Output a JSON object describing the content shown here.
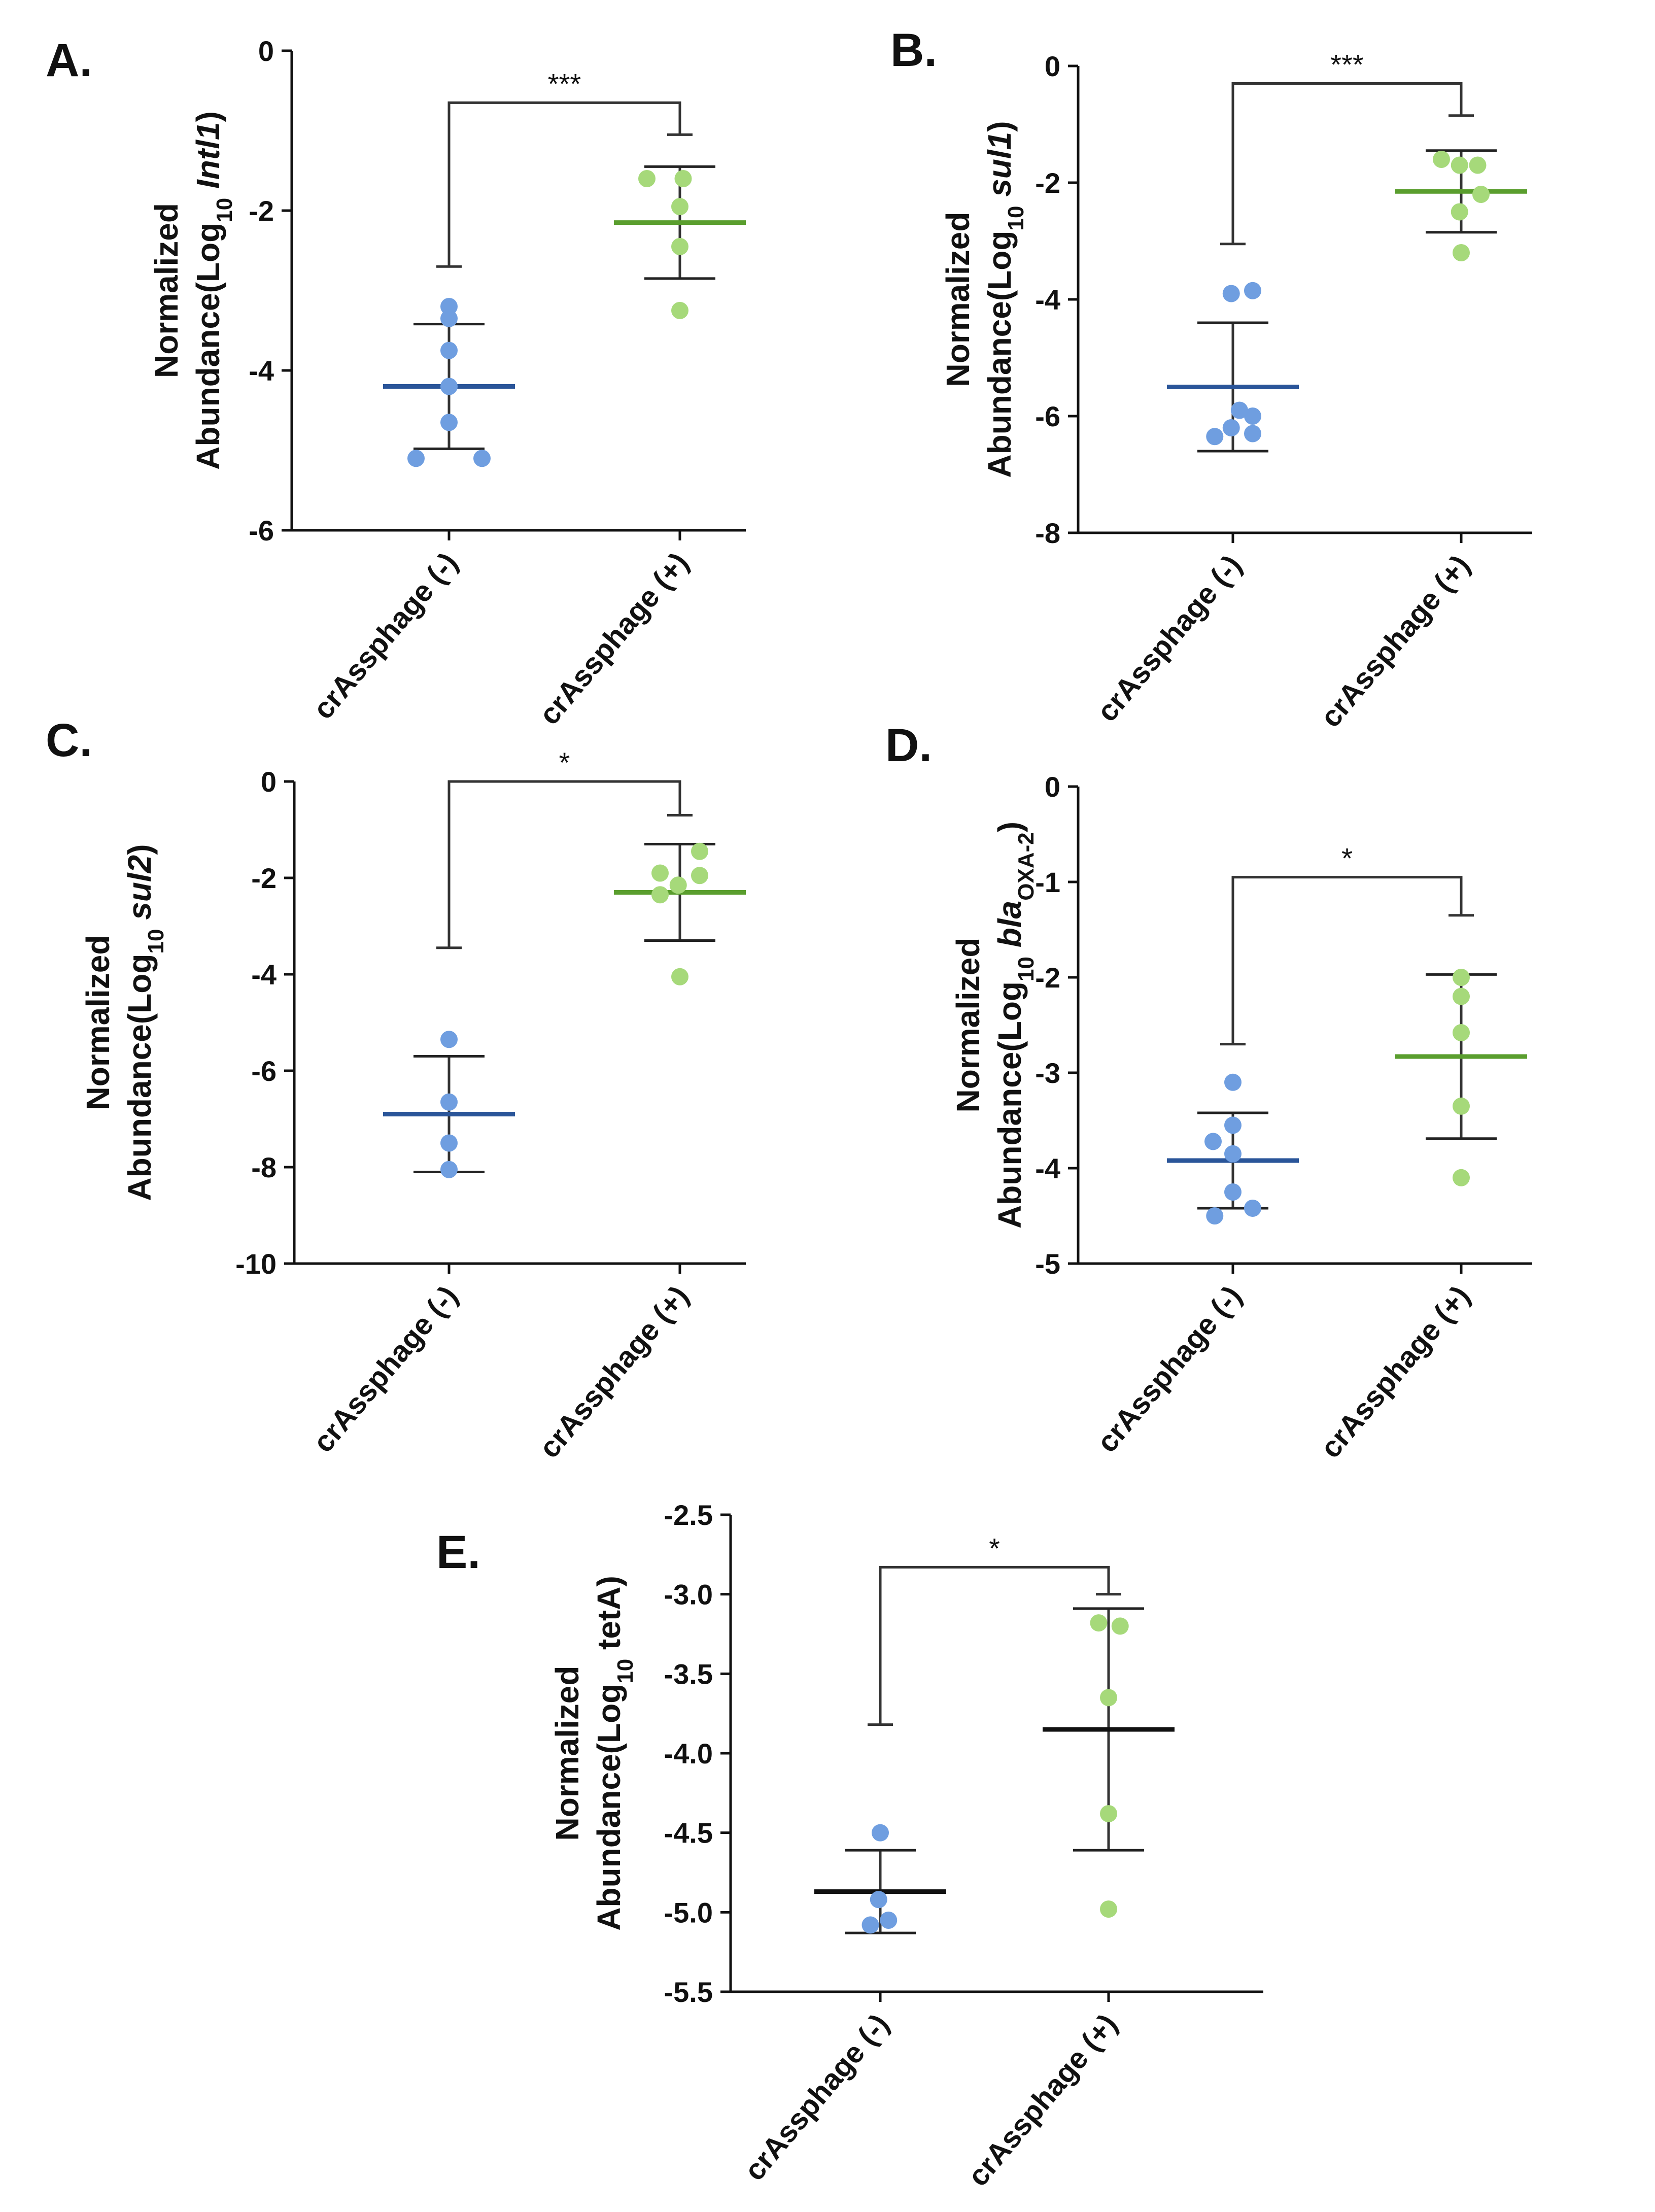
{
  "chart_data": [
    {
      "type": "scatter",
      "panel": "A.",
      "ylabel": {
        "line1": "Normalized",
        "prefix": "Abundance(Log",
        "sub1": "10",
        "mid": " ",
        "ital": "Intl1",
        "sub2": "",
        "suffix": ")"
      },
      "categories": [
        "crAssphage (-)",
        "crAssphage (+)"
      ],
      "ylim": [
        -6,
        0
      ],
      "yticks": [
        0,
        -2,
        -4,
        -6
      ],
      "series": [
        {
          "name": "crAssphage (-)",
          "color": "#6f9ee0",
          "mean": -4.2,
          "sd": 0.78,
          "line_color": "#2a5599",
          "points": [
            -3.2,
            -3.35,
            -3.75,
            -4.2,
            -4.65,
            -5.1,
            -5.1
          ],
          "jitter": [
            0,
            0,
            0,
            0,
            0,
            -1,
            1
          ]
        },
        {
          "name": "crAssphage (+)",
          "color": "#a6d97a",
          "mean": -2.15,
          "sd": 0.7,
          "line_color": "#5a9e2e",
          "points": [
            -1.6,
            -1.6,
            -1.95,
            -2.45,
            -3.25
          ],
          "jitter": [
            -1,
            0.1,
            0,
            0,
            0
          ]
        }
      ],
      "significance": {
        "label": "***",
        "neg_top": -2.7,
        "pos_top": -1.05,
        "bracket": -0.65
      }
    },
    {
      "type": "scatter",
      "panel": "B.",
      "ylabel": {
        "line1": "Normalized",
        "prefix": "Abundance(Log",
        "sub1": "10",
        "mid": " ",
        "ital": "sul1",
        "sub2": "",
        "suffix": ")"
      },
      "categories": [
        "crAssphage (-)",
        "crAssphage (+)"
      ],
      "ylim": [
        -8,
        0
      ],
      "yticks": [
        0,
        -2,
        -4,
        -6,
        -8
      ],
      "series": [
        {
          "name": "crAssphage (-)",
          "color": "#6f9ee0",
          "mean": -5.5,
          "sd": 1.1,
          "line_color": "#2a5599",
          "points": [
            -3.85,
            -3.9,
            -5.9,
            -6.0,
            -6.2,
            -6.3,
            -6.35
          ],
          "jitter": [
            0.6,
            -0.05,
            0.2,
            0.6,
            -0.05,
            0.6,
            -0.55
          ]
        },
        {
          "name": "crAssphage (+)",
          "color": "#a6d97a",
          "mean": -2.15,
          "sd": 0.7,
          "line_color": "#5a9e2e",
          "points": [
            -1.6,
            -1.7,
            -1.7,
            -2.2,
            -2.5,
            -3.2
          ],
          "jitter": [
            -0.6,
            0.5,
            -0.05,
            0.6,
            -0.05,
            0
          ]
        }
      ],
      "significance": {
        "label": "***",
        "neg_top": -3.05,
        "pos_top": -0.85,
        "bracket": -0.3
      }
    },
    {
      "type": "scatter",
      "panel": "C.",
      "ylabel": {
        "line1": "Normalized",
        "prefix": "Abundance(Log",
        "sub1": "10",
        "mid": " ",
        "ital": "sul2",
        "sub2": "",
        "suffix": ")"
      },
      "categories": [
        "crAssphage (-)",
        "crAssphage (+)"
      ],
      "ylim": [
        -10,
        0
      ],
      "yticks": [
        0,
        -2,
        -4,
        -6,
        -8,
        -10
      ],
      "series": [
        {
          "name": "crAssphage (-)",
          "color": "#6f9ee0",
          "mean": -6.9,
          "sd": 1.2,
          "line_color": "#2a5599",
          "points": [
            -5.35,
            -6.65,
            -7.5,
            -8.05
          ],
          "jitter": [
            0,
            0,
            0,
            0
          ]
        },
        {
          "name": "crAssphage (+)",
          "color": "#a6d97a",
          "mean": -2.3,
          "sd": 1.0,
          "line_color": "#5a9e2e",
          "points": [
            -1.45,
            -1.9,
            -1.95,
            -2.15,
            -2.35,
            -4.05
          ],
          "jitter": [
            0.6,
            -0.6,
            0.6,
            -0.05,
            -0.6,
            0
          ]
        }
      ],
      "significance": {
        "label": "*",
        "neg_top": -3.45,
        "pos_top": -0.7,
        "bracket": 0
      }
    },
    {
      "type": "scatter",
      "panel": "D.",
      "ylabel": {
        "line1": "Normalized",
        "prefix": "Abundance(Log",
        "sub1": "10",
        "mid": " ",
        "ital": "bla",
        "sub2": "OXA-2",
        "suffix": ")"
      },
      "categories": [
        "crAssphage (-)",
        "crAssphage (+)"
      ],
      "ylim": [
        -5,
        0
      ],
      "yticks": [
        0,
        -1,
        -2,
        -3,
        -4,
        -5
      ],
      "series": [
        {
          "name": "crAssphage (-)",
          "color": "#6f9ee0",
          "mean": -3.92,
          "sd": 0.5,
          "line_color": "#2a5599",
          "points": [
            -3.1,
            -3.55,
            -3.72,
            -3.85,
            -4.25,
            -4.42,
            -4.5
          ],
          "jitter": [
            0,
            0,
            -0.6,
            0,
            0,
            0.6,
            -0.55
          ]
        },
        {
          "name": "crAssphage (+)",
          "color": "#a6d97a",
          "mean": -2.83,
          "sd": 0.86,
          "line_color": "#5a9e2e",
          "points": [
            -2.0,
            -2.2,
            -2.58,
            -3.35,
            -4.1
          ],
          "jitter": [
            0,
            0,
            0,
            0,
            0
          ]
        }
      ],
      "significance": {
        "label": "*",
        "neg_top": -2.7,
        "pos_top": -1.35,
        "bracket": -0.95
      }
    },
    {
      "type": "scatter",
      "panel": "E.",
      "ylabel": {
        "line1": "Normalized",
        "prefix": "Abundance(Log",
        "sub1": "10",
        "mid": " ",
        "ital": "",
        "bold_name": "tetA",
        "sub2": "",
        "suffix": ")"
      },
      "categories": [
        "crAssphage (-)",
        "crAssphage (+)"
      ],
      "ylim": [
        -5.5,
        -2.5
      ],
      "yticks": [
        -2.5,
        -3.0,
        -3.5,
        -4.0,
        -4.5,
        -5.0,
        -5.5
      ],
      "series": [
        {
          "name": "crAssphage (-)",
          "color": "#6f9ee0",
          "mean": -4.87,
          "sd": 0.26,
          "line_color": "#111111",
          "points": [
            -4.5,
            -4.92,
            -5.05,
            -5.08
          ],
          "jitter": [
            0,
            -0.05,
            0.25,
            -0.3
          ]
        },
        {
          "name": "crAssphage (+)",
          "color": "#a6d97a",
          "mean": -3.85,
          "sd": 0.76,
          "line_color": "#111111",
          "points": [
            -3.18,
            -3.2,
            -3.65,
            -4.38,
            -4.98
          ],
          "jitter": [
            -0.3,
            0.35,
            0,
            0,
            0
          ]
        }
      ],
      "significance": {
        "label": "*",
        "neg_top": -3.82,
        "pos_top": -3.0,
        "bracket": -2.83
      }
    }
  ]
}
